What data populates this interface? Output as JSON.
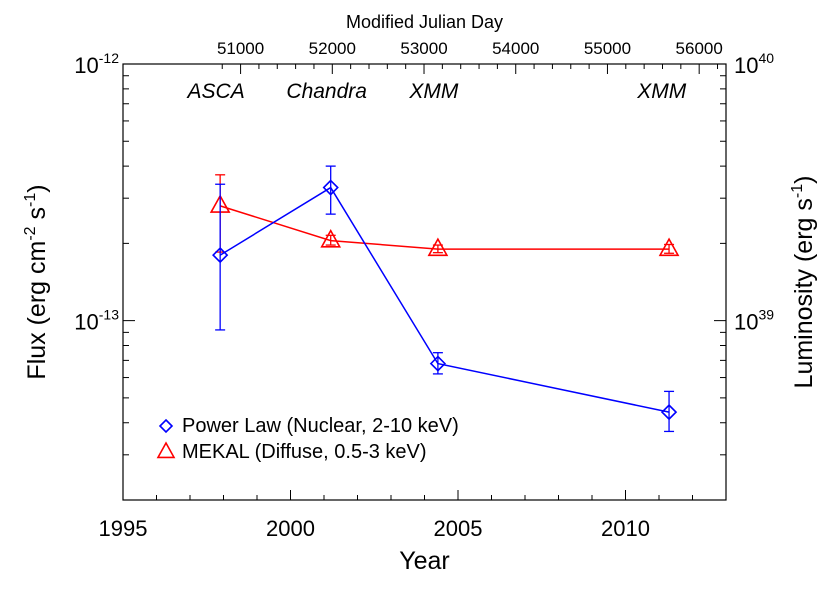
{
  "chart_data": {
    "type": "line",
    "x_axis": {
      "label": "Year",
      "range": [
        1995,
        2013
      ],
      "ticks": [
        1995,
        2000,
        2005,
        2010
      ]
    },
    "x_top_axis": {
      "label": "Modified Julian Day",
      "ticks": [
        51000,
        52000,
        53000,
        54000,
        55000,
        56000
      ]
    },
    "y_left_axis": {
      "label": "Flux (erg cm-2 s-1)",
      "label_parts": {
        "base": "Flux (erg cm",
        "exp1": "-2",
        "mid": " s",
        "exp2": "-1",
        "end": ")"
      },
      "scale": "log",
      "range": [
        2e-14,
        1e-12
      ],
      "major_ticks": [
        1e-13,
        1e-12
      ],
      "major_tick_labels": [
        {
          "mantissa": "10",
          "exponent": "-13"
        },
        {
          "mantissa": "10",
          "exponent": "-12"
        }
      ]
    },
    "y_right_axis": {
      "label": "Luminosity (erg s-1)",
      "label_parts": {
        "base": "Luminosity (erg s",
        "exp": "-1",
        "end": ")"
      },
      "scale": "log",
      "major_ticks": [
        1e+39,
        1e+40
      ],
      "major_tick_labels": [
        {
          "mantissa": "10",
          "exponent": "39"
        },
        {
          "mantissa": "10",
          "exponent": "40"
        }
      ]
    },
    "observatories": [
      {
        "label": "ASCA",
        "x": 1997.9
      },
      {
        "label": "Chandra",
        "x": 2001.2
      },
      {
        "label": "XMM",
        "x": 2004.4
      },
      {
        "label": "XMM",
        "x": 2011.2
      }
    ],
    "series": [
      {
        "name": "Power Law (Nuclear, 2-10 keV)",
        "marker": "diamond",
        "color": "#0000ff",
        "points": [
          {
            "x": 1997.9,
            "y": 1.8e-13,
            "ylo": 9.2e-14,
            "yhi": 3.4e-13
          },
          {
            "x": 2001.2,
            "y": 3.3e-13,
            "ylo": 2.6e-13,
            "yhi": 4e-13
          },
          {
            "x": 2004.4,
            "y": 6.8e-14,
            "ylo": 6.2e-14,
            "yhi": 7.5e-14
          },
          {
            "x": 2011.3,
            "y": 4.4e-14,
            "ylo": 3.7e-14,
            "yhi": 5.3e-14
          }
        ]
      },
      {
        "name": "MEKAL (Diffuse, 0.5-3 keV)",
        "marker": "triangle",
        "color": "#ff0000",
        "points": [
          {
            "x": 1997.9,
            "y": 2.8e-13,
            "ylo": 1.85e-13,
            "yhi": 3.7e-13
          },
          {
            "x": 2001.2,
            "y": 2.05e-13,
            "ylo": 1.97e-13,
            "yhi": 2.15e-13
          },
          {
            "x": 2004.4,
            "y": 1.9e-13,
            "ylo": 1.84e-13,
            "yhi": 1.97e-13
          },
          {
            "x": 2011.3,
            "y": 1.9e-13,
            "ylo": 1.83e-13,
            "yhi": 1.98e-13
          }
        ]
      }
    ],
    "legend": {
      "placement": "bottom-left"
    }
  }
}
